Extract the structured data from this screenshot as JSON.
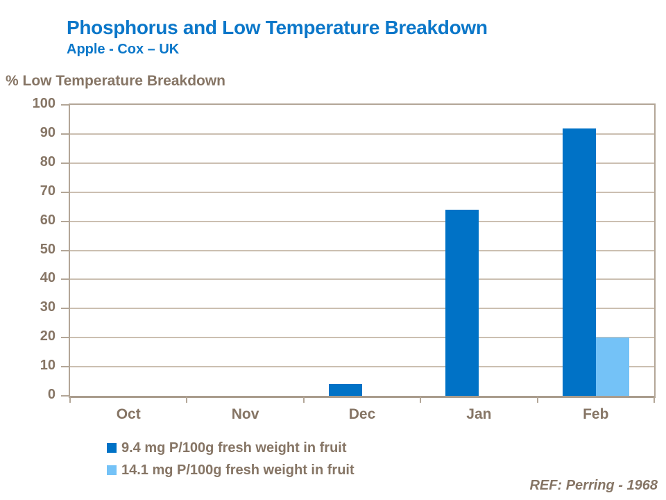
{
  "header": {
    "title": "Phosphorus and Low Temperature Breakdown",
    "subtitle": "Apple - Cox – UK"
  },
  "footer": {
    "reference": "REF: Perring - 1968"
  },
  "palette": {
    "title_blue": "#0B77C9",
    "text_tan": "#867565",
    "grid_line": "#CBBFB1",
    "plot_border": "#B3A697",
    "axis_line": "#A99C8D",
    "series1_blue": "#0072C6",
    "series2_light_blue": "#74C2F7"
  },
  "chart_data": {
    "type": "bar",
    "title": "Phosphorus and Low Temperature Breakdown",
    "subtitle": "Apple - Cox – UK",
    "axis_title": "% Low Temperature Breakdown",
    "categories": [
      "Oct",
      "Nov",
      "Dec",
      "Jan",
      "Feb"
    ],
    "series": [
      {
        "name": "9.4 mg P/100g fresh weight in fruit",
        "color": "#0072C6",
        "values": [
          0,
          0,
          4,
          64,
          92
        ]
      },
      {
        "name": "14.1 mg P/100g fresh weight in fruit",
        "color": "#74C2F7",
        "values": [
          0,
          0,
          0,
          0,
          20
        ]
      }
    ],
    "ylim": [
      0,
      100
    ],
    "ytick_step": 10,
    "yticks": [
      0,
      10,
      20,
      30,
      40,
      50,
      60,
      70,
      80,
      90,
      100
    ],
    "grid": true,
    "legend_position": "bottom-left",
    "annotation": "REF: Perring - 1968"
  }
}
